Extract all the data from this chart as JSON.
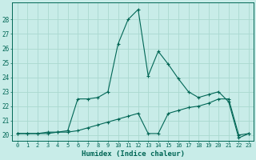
{
  "xlabel": "Humidex (Indice chaleur)",
  "bg_color": "#c8ece8",
  "grid_color": "#aad8d0",
  "line_color": "#006655",
  "x": [
    0,
    1,
    2,
    3,
    4,
    5,
    6,
    7,
    8,
    9,
    10,
    11,
    12,
    13,
    14,
    15,
    16,
    17,
    18,
    19,
    20,
    21,
    22,
    23
  ],
  "line1": [
    20.1,
    20.1,
    20.1,
    20.2,
    20.2,
    20.3,
    22.5,
    22.5,
    22.6,
    23.0,
    26.3,
    28.0,
    28.7,
    24.1,
    25.8,
    24.9,
    23.9,
    23.0,
    22.6,
    22.8,
    23.0,
    22.3,
    19.8,
    20.1
  ],
  "line2": [
    20.1,
    20.1,
    20.1,
    20.1,
    20.2,
    20.2,
    20.3,
    20.5,
    20.7,
    20.9,
    21.1,
    21.3,
    21.5,
    20.1,
    20.1,
    21.5,
    21.7,
    21.9,
    22.0,
    22.2,
    22.5,
    22.5,
    20.0,
    20.1
  ],
  "ylim": [
    19.6,
    29.2
  ],
  "yticks": [
    20,
    21,
    22,
    23,
    24,
    25,
    26,
    27,
    28
  ],
  "xlim": [
    -0.5,
    23.5
  ]
}
